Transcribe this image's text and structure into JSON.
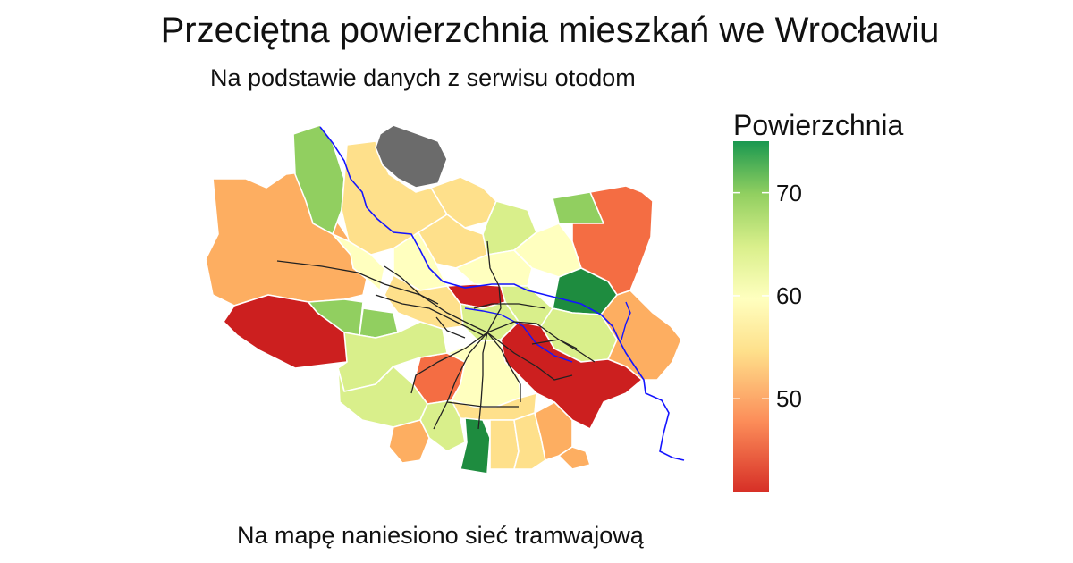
{
  "title": "Przeciętna powierzchnia mieszkań we Wrocławiu",
  "subtitle": "Na podstawie danych z serwisu otodom",
  "caption": "Na mapę naniesiono sieć tramwajową",
  "legend": {
    "title": "Powierzchnia",
    "ticks": [
      {
        "value": 70,
        "label": "70"
      },
      {
        "value": 60,
        "label": "60"
      },
      {
        "value": 50,
        "label": "50"
      }
    ],
    "range": [
      41,
      75
    ]
  },
  "colors": {
    "very_high": "#1e8c3f",
    "high": "#91cf60",
    "mid_high": "#d9ef8b",
    "mid": "#ffffbf",
    "mid_low": "#fee08b",
    "low": "#fdae61",
    "lower": "#f46d43",
    "lowest": "#cc1f1f",
    "no_data": "#6b6b6b",
    "river": "#1414ff",
    "tram": "#222222"
  }
}
